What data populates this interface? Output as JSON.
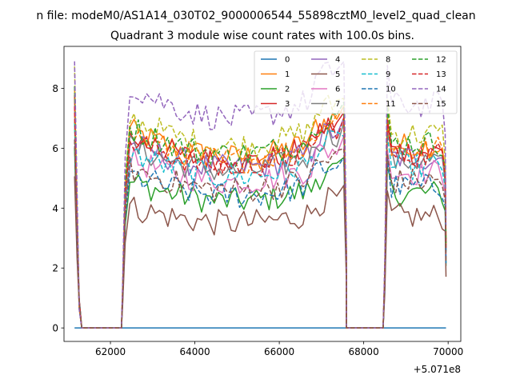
{
  "figure": {
    "suptitle": "n file: modeM0/AS1A14_030T02_9000006544_55898cztM0_level2_quad_clean",
    "offset_text": "+5.071e8"
  },
  "chart_data": {
    "type": "line",
    "title": "Quadrant 3 module wise count rates with 100.0s bins.",
    "xlabel": "",
    "ylabel": "",
    "x_offset": 507100000,
    "xlim": [
      60900,
      70300
    ],
    "ylim": [
      -0.45,
      9.4
    ],
    "xticks": [
      62000,
      64000,
      66000,
      68000,
      70000
    ],
    "yticks": [
      0,
      2,
      4,
      6,
      8
    ],
    "xtick_labels": [
      "62000",
      "64000",
      "66000",
      "68000",
      "70000"
    ],
    "ytick_labels": [
      "0",
      "2",
      "4",
      "6",
      "8"
    ],
    "legend": {
      "position": "top-right",
      "columns": 4
    },
    "gaps": [
      [
        61320,
        62260
      ],
      [
        67590,
        68460
      ]
    ],
    "segments": [
      [
        61150,
        61320
      ],
      [
        62260,
        67590
      ],
      [
        68460,
        69950
      ]
    ],
    "series": [
      {
        "name": "0",
        "color": "#1f77b4",
        "dash": "solid",
        "level": 0.0
      },
      {
        "name": "1",
        "color": "#ff7f0e",
        "dash": "solid",
        "level": 6.2
      },
      {
        "name": "2",
        "color": "#2ca02c",
        "dash": "solid",
        "level": 4.6
      },
      {
        "name": "3",
        "color": "#d62728",
        "dash": "solid",
        "level": 6.0
      },
      {
        "name": "4",
        "color": "#9467bd",
        "dash": "solid",
        "level": 5.8
      },
      {
        "name": "5",
        "color": "#8c564b",
        "dash": "solid",
        "level": 3.8
      },
      {
        "name": "6",
        "color": "#e377c2",
        "dash": "solid",
        "level": 5.3
      },
      {
        "name": "7",
        "color": "#7f7f7f",
        "dash": "solid",
        "level": 5.7
      },
      {
        "name": "8",
        "color": "#bcbd22",
        "dash": "dashed",
        "level": 6.6
      },
      {
        "name": "9",
        "color": "#17becf",
        "dash": "dashed",
        "level": 5.5
      },
      {
        "name": "10",
        "color": "#1f77b4",
        "dash": "dashed",
        "level": 4.8
      },
      {
        "name": "11",
        "color": "#ff7f0e",
        "dash": "dashed",
        "level": 6.1
      },
      {
        "name": "12",
        "color": "#2ca02c",
        "dash": "dashed",
        "level": 6.3
      },
      {
        "name": "13",
        "color": "#d62728",
        "dash": "dashed",
        "level": 5.9
      },
      {
        "name": "14",
        "color": "#9467bd",
        "dash": "dashed",
        "level": 7.6
      },
      {
        "name": "15",
        "color": "#8c564b",
        "dash": "dashed",
        "level": 5.0
      }
    ]
  }
}
